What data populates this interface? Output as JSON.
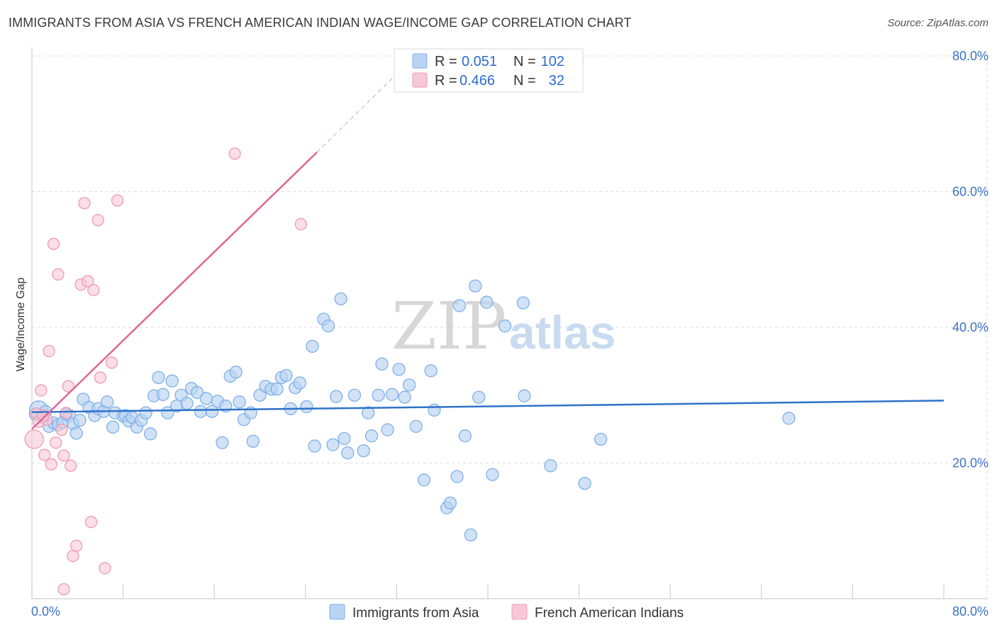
{
  "title": "IMMIGRANTS FROM ASIA VS FRENCH AMERICAN INDIAN WAGE/INCOME GAP CORRELATION CHART",
  "source": "Source: ZipAtlas.com",
  "watermark": {
    "part1": "ZIP",
    "part2": "atlas"
  },
  "colors": {
    "blue": "#7fb0e8",
    "blue_fill": "#b9d3f3",
    "blue_line": "#2f72c8",
    "pink": "#f09ab4",
    "pink_fill": "#f8c8d7",
    "pink_line": "#e06692",
    "grid": "#dcdcdc",
    "tick_text": "#3b72c4"
  },
  "stats": {
    "r_label": "R =",
    "n_label": "N =",
    "rows": [
      {
        "series": "Immigrants from Asia",
        "r": "0.051",
        "n": "102"
      },
      {
        "series": "French American Indians",
        "r": "0.466",
        "n": "32"
      }
    ]
  },
  "legend": {
    "items": [
      "Immigrants from Asia",
      "French American Indians"
    ]
  },
  "chart_data": {
    "type": "scatter",
    "title": "IMMIGRANTS FROM ASIA VS FRENCH AMERICAN INDIAN WAGE/INCOME GAP CORRELATION CHART",
    "xlabel": "",
    "ylabel": "Wage/Income Gap",
    "xlim": [
      0,
      80
    ],
    "ylim": [
      0,
      80
    ],
    "x_tick_labels": [
      "0.0%",
      "80.0%"
    ],
    "y_tick_labels": [
      "20.0%",
      "40.0%",
      "60.0%",
      "80.0%"
    ],
    "y_ticks": [
      20,
      40,
      60,
      80
    ],
    "series": [
      {
        "name": "Immigrants from Asia",
        "trend": {
          "x0": 0,
          "y0": 27.5,
          "x1": 80,
          "y1": 29.2
        },
        "points": [
          [
            0.3,
            27.2
          ],
          [
            0.6,
            27.8
          ],
          [
            0.9,
            26.8
          ],
          [
            1.2,
            27.6
          ],
          [
            1.5,
            25.4
          ],
          [
            1.9,
            25.9
          ],
          [
            2.3,
            25.6
          ],
          [
            2.7,
            26.0
          ],
          [
            3.0,
            27.2
          ],
          [
            3.3,
            27.0
          ],
          [
            3.6,
            25.8
          ],
          [
            3.9,
            24.4
          ],
          [
            4.2,
            26.3
          ],
          [
            4.5,
            29.4
          ],
          [
            5.0,
            28.2
          ],
          [
            5.5,
            27.0
          ],
          [
            5.8,
            28.0
          ],
          [
            6.3,
            27.6
          ],
          [
            6.6,
            29.0
          ],
          [
            7.1,
            25.3
          ],
          [
            7.3,
            27.4
          ],
          [
            8.0,
            26.9
          ],
          [
            8.2,
            27.0
          ],
          [
            8.5,
            26.2
          ],
          [
            8.8,
            26.7
          ],
          [
            9.2,
            25.3
          ],
          [
            9.6,
            26.3
          ],
          [
            10.0,
            27.4
          ],
          [
            10.4,
            24.3
          ],
          [
            10.7,
            29.9
          ],
          [
            11.1,
            32.6
          ],
          [
            11.5,
            30.1
          ],
          [
            11.9,
            27.4
          ],
          [
            12.3,
            32.1
          ],
          [
            12.7,
            28.4
          ],
          [
            13.1,
            30.0
          ],
          [
            13.6,
            28.8
          ],
          [
            14.0,
            31.0
          ],
          [
            14.5,
            30.4
          ],
          [
            14.8,
            27.6
          ],
          [
            15.3,
            29.5
          ],
          [
            15.8,
            27.6
          ],
          [
            16.3,
            29.1
          ],
          [
            16.7,
            23.0
          ],
          [
            17.0,
            28.4
          ],
          [
            17.4,
            32.8
          ],
          [
            17.9,
            33.4
          ],
          [
            18.2,
            29.0
          ],
          [
            18.6,
            26.4
          ],
          [
            19.2,
            27.4
          ],
          [
            19.4,
            23.2
          ],
          [
            20.0,
            30.0
          ],
          [
            20.5,
            31.3
          ],
          [
            21.0,
            30.9
          ],
          [
            21.5,
            30.9
          ],
          [
            21.9,
            32.6
          ],
          [
            22.3,
            32.9
          ],
          [
            22.7,
            28.0
          ],
          [
            23.1,
            31.1
          ],
          [
            23.5,
            31.8
          ],
          [
            24.1,
            28.3
          ],
          [
            24.6,
            37.2
          ],
          [
            24.8,
            22.5
          ],
          [
            25.6,
            41.2
          ],
          [
            26.0,
            40.2
          ],
          [
            26.4,
            22.7
          ],
          [
            26.7,
            29.8
          ],
          [
            27.1,
            44.2
          ],
          [
            27.4,
            23.6
          ],
          [
            27.7,
            21.5
          ],
          [
            28.3,
            30.0
          ],
          [
            29.1,
            21.8
          ],
          [
            29.5,
            27.4
          ],
          [
            29.8,
            24.0
          ],
          [
            30.4,
            30.0
          ],
          [
            30.7,
            34.6
          ],
          [
            31.2,
            24.9
          ],
          [
            31.6,
            30.1
          ],
          [
            32.2,
            33.8
          ],
          [
            32.7,
            29.7
          ],
          [
            33.1,
            31.5
          ],
          [
            33.7,
            25.4
          ],
          [
            34.4,
            17.5
          ],
          [
            35.0,
            33.6
          ],
          [
            35.3,
            27.8
          ],
          [
            36.4,
            13.4
          ],
          [
            36.7,
            14.1
          ],
          [
            37.3,
            18.0
          ],
          [
            37.5,
            43.2
          ],
          [
            38.0,
            24.0
          ],
          [
            38.5,
            9.4
          ],
          [
            38.9,
            46.1
          ],
          [
            39.2,
            29.7
          ],
          [
            39.9,
            43.7
          ],
          [
            40.4,
            18.3
          ],
          [
            41.5,
            40.2
          ],
          [
            43.1,
            43.6
          ],
          [
            43.2,
            29.9
          ],
          [
            45.5,
            19.6
          ],
          [
            48.5,
            17.0
          ],
          [
            49.9,
            23.5
          ],
          [
            66.4,
            26.6
          ]
        ]
      },
      {
        "name": "French American Indians",
        "trend": {
          "x0": 0,
          "y0": 25.0,
          "x1": 25,
          "y1": 65.8,
          "dashed_to": {
            "x": 33,
            "y": 79
          }
        },
        "points": [
          [
            0.2,
            23.5
          ],
          [
            0.4,
            27.3
          ],
          [
            0.6,
            26.1
          ],
          [
            0.8,
            30.7
          ],
          [
            1.1,
            21.2
          ],
          [
            1.3,
            26.4
          ],
          [
            1.5,
            36.5
          ],
          [
            1.7,
            19.8
          ],
          [
            1.9,
            52.3
          ],
          [
            2.1,
            23.0
          ],
          [
            2.3,
            47.8
          ],
          [
            2.6,
            24.9
          ],
          [
            2.8,
            21.1
          ],
          [
            3.0,
            27.4
          ],
          [
            3.2,
            31.3
          ],
          [
            3.4,
            19.6
          ],
          [
            3.6,
            6.3
          ],
          [
            3.9,
            7.8
          ],
          [
            4.3,
            46.3
          ],
          [
            4.6,
            58.3
          ],
          [
            4.9,
            46.8
          ],
          [
            5.2,
            11.3
          ],
          [
            5.4,
            45.5
          ],
          [
            5.8,
            55.8
          ],
          [
            6.0,
            32.6
          ],
          [
            6.4,
            4.5
          ],
          [
            7.0,
            34.8
          ],
          [
            7.5,
            58.7
          ],
          [
            2.8,
            1.4
          ],
          [
            17.8,
            65.6
          ],
          [
            23.6,
            55.2
          ],
          [
            1.0,
            27.0
          ]
        ]
      }
    ]
  }
}
